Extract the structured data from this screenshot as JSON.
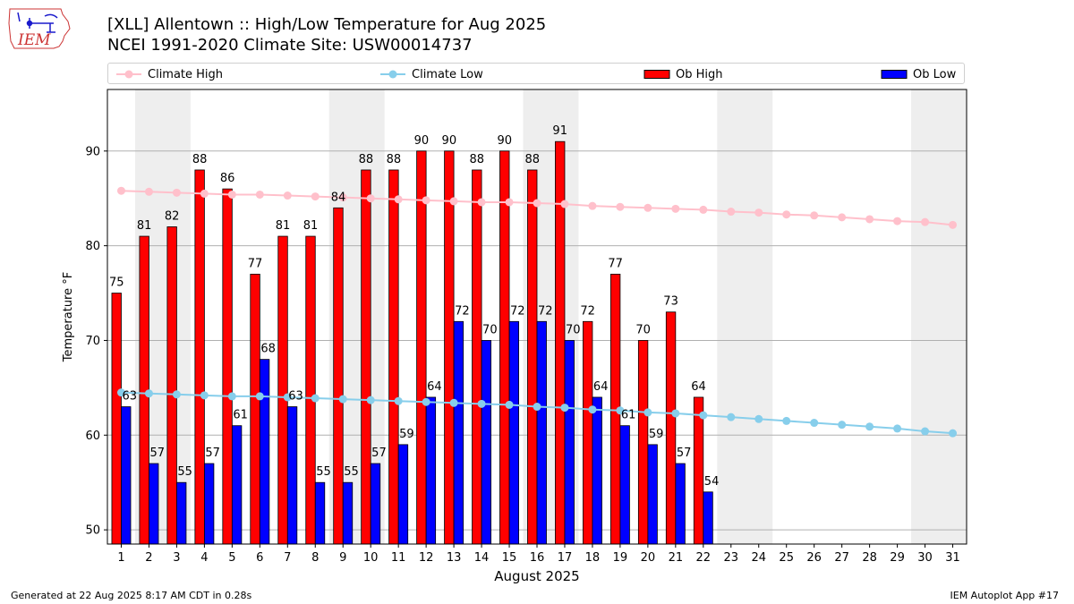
{
  "header": {
    "logo_text": "IEM",
    "title_line1": "[XLL] Allentown :: High/Low Temperature for Aug 2025",
    "title_line2": "NCEI 1991-2020 Climate Site: USW00014737"
  },
  "legend": {
    "climate_high": "Climate High",
    "climate_low": "Climate Low",
    "ob_high": "Ob High",
    "ob_low": "Ob Low"
  },
  "footer": {
    "generated": "Generated at 22 Aug 2025 8:17 AM CDT in 0.28s",
    "app": "IEM Autoplot App #17"
  },
  "colors": {
    "climate_high": "#ffc0cb",
    "climate_low": "#87ceeb",
    "ob_high": "#ff0000",
    "ob_low": "#0000ff",
    "weekend_band": "#eeeeee",
    "grid": "#b0b0b0",
    "logo": "#cc3333"
  },
  "chart_data": {
    "type": "bar",
    "xlabel": "August 2025",
    "ylabel": "Temperature °F",
    "ylim": [
      48.5,
      96.5
    ],
    "yticks": [
      50,
      60,
      70,
      80,
      90
    ],
    "xlim": [
      0.5,
      31.5
    ],
    "days": [
      1,
      2,
      3,
      4,
      5,
      6,
      7,
      8,
      9,
      10,
      11,
      12,
      13,
      14,
      15,
      16,
      17,
      18,
      19,
      20,
      21,
      22,
      23,
      24,
      25,
      26,
      27,
      28,
      29,
      30,
      31
    ],
    "weekend_shading": [
      [
        2,
        3
      ],
      [
        9,
        10
      ],
      [
        16,
        17
      ],
      [
        23,
        24
      ],
      [
        30,
        31
      ]
    ],
    "grid": "horizontal",
    "legend_position": "top",
    "series": [
      {
        "name": "Ob High",
        "kind": "bar",
        "values": [
          75,
          81,
          82,
          88,
          86,
          77,
          81,
          81,
          84,
          88,
          88,
          90,
          90,
          88,
          90,
          88,
          91,
          72,
          77,
          70,
          73,
          64
        ],
        "labels": [
          "75",
          "81",
          "82",
          "88",
          "86",
          "77",
          "81",
          "81",
          "84",
          "88",
          "88",
          "90",
          "90",
          "88",
          "90",
          "88",
          "91",
          "72",
          "77",
          "70",
          "73",
          "64"
        ]
      },
      {
        "name": "Ob Low",
        "kind": "bar",
        "values": [
          63,
          57,
          55,
          57,
          61,
          68,
          63,
          55,
          55,
          57,
          59,
          64,
          72,
          70,
          72,
          72,
          70,
          64,
          61,
          59,
          57,
          54
        ],
        "labels": [
          "63",
          "57",
          "55",
          "57",
          "61",
          "68",
          "63",
          "55",
          "55",
          "57",
          "59",
          "64",
          "72",
          "70",
          "72",
          "72",
          "70",
          "64",
          "61",
          "59",
          "57",
          "54"
        ]
      },
      {
        "name": "Climate High",
        "kind": "line",
        "values": [
          85.8,
          85.7,
          85.6,
          85.5,
          85.4,
          85.4,
          85.3,
          85.2,
          85.1,
          85.0,
          84.9,
          84.8,
          84.7,
          84.6,
          84.6,
          84.5,
          84.4,
          84.2,
          84.1,
          84.0,
          83.9,
          83.8,
          83.6,
          83.5,
          83.3,
          83.2,
          83.0,
          82.8,
          82.6,
          82.5,
          82.2
        ]
      },
      {
        "name": "Climate Low",
        "kind": "line",
        "values": [
          64.5,
          64.4,
          64.3,
          64.2,
          64.1,
          64.1,
          64.0,
          63.9,
          63.8,
          63.7,
          63.6,
          63.5,
          63.4,
          63.3,
          63.2,
          63.0,
          62.9,
          62.7,
          62.6,
          62.4,
          62.3,
          62.1,
          61.9,
          61.7,
          61.5,
          61.3,
          61.1,
          60.9,
          60.7,
          60.4,
          60.2
        ]
      }
    ]
  }
}
